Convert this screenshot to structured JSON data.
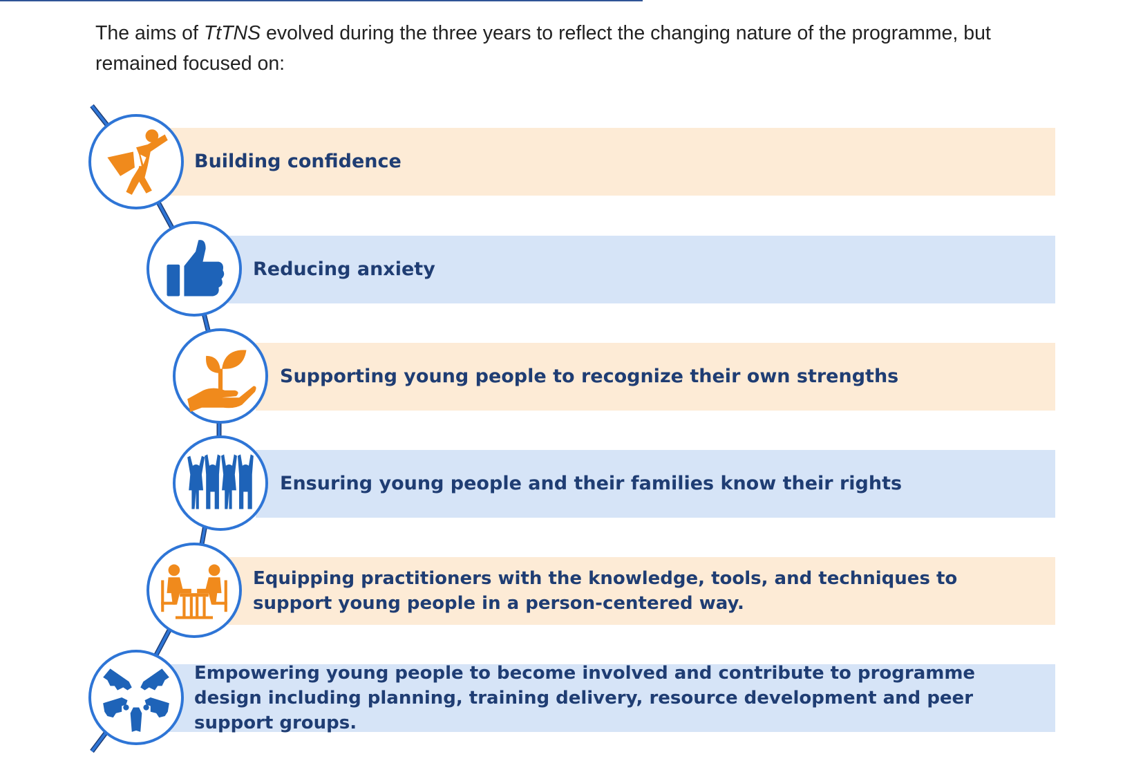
{
  "intro": {
    "text_before": "The aims of ",
    "text_em": "TtTNS",
    "text_after": " evolved during the three years to reflect the changing nature of the programme, but remained focused on:"
  },
  "aims": [
    {
      "label": "Building confidence",
      "icon": "superhero-icon",
      "color": "#f08a1c",
      "band": "#fdebd6"
    },
    {
      "label": "Reducing anxiety",
      "icon": "thumbs-up-icon",
      "color": "#1e63b8",
      "band": "#d6e4f7"
    },
    {
      "label": "Supporting young people to recognize their own strengths",
      "icon": "hand-plant-icon",
      "color": "#f08a1c",
      "band": "#fdebd6"
    },
    {
      "label": "Ensuring young people and their families know their rights",
      "icon": "people-raising-hands-icon",
      "color": "#1e63b8",
      "band": "#d6e4f7"
    },
    {
      "label": "Equipping practitioners with  the knowledge, tools, and techniques to support young people in a person-centered way.",
      "icon": "meeting-table-icon",
      "color": "#f08a1c",
      "band": "#fdebd6"
    },
    {
      "label": "Empowering young people to become involved and contribute to programme design including planning, training delivery, resource development and peer support groups.",
      "icon": "joined-hands-circle-icon",
      "color": "#1e63b8",
      "band": "#d6e4f7"
    }
  ],
  "colors": {
    "accent_blue": "#2e75d6",
    "text_navy": "#1f3d73",
    "orange": "#f08a1c",
    "peach": "#fdebd6",
    "light_blue": "#d6e4f7"
  }
}
